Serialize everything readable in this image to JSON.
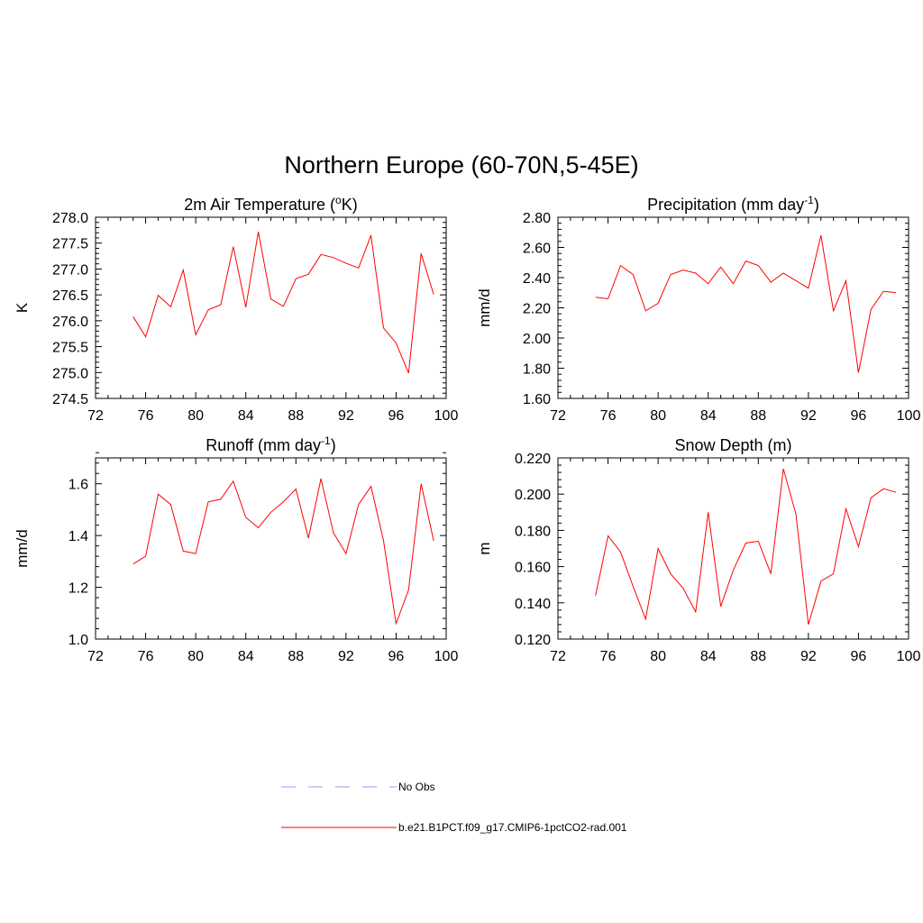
{
  "figure": {
    "title": "Northern Europe (60-70N,5-45E)"
  },
  "chart_data": [
    {
      "type": "line",
      "title_main": "2m Air Temperature (",
      "title_sup": "o",
      "title_end": "K)",
      "xlabel": "",
      "ylabel": "K",
      "xlim": [
        72,
        100
      ],
      "ylim": [
        274.5,
        278.0
      ],
      "xticks": [
        72,
        76,
        80,
        84,
        88,
        92,
        96,
        100
      ],
      "yticks": [
        274.5,
        275.0,
        275.5,
        276.0,
        276.5,
        277.0,
        277.5,
        278.0
      ],
      "ytick_labels": [
        "274.5",
        "275.0",
        "275.5",
        "276.0",
        "276.5",
        "277.0",
        "277.5",
        "278.0"
      ],
      "grid": false,
      "series": [
        {
          "name": "b.e21.B1PCT.f09_g17.CMIP6-1pctCO2-rad.001",
          "color": "#ff0000",
          "x": [
            75,
            76,
            77,
            78,
            79,
            80,
            81,
            82,
            83,
            84,
            85,
            86,
            87,
            88,
            89,
            90,
            91,
            92,
            93,
            94,
            95,
            96,
            97,
            98,
            99
          ],
          "y": [
            276.08,
            275.69,
            276.49,
            276.27,
            276.98,
            275.73,
            276.21,
            276.31,
            277.43,
            276.26,
            277.72,
            276.42,
            276.28,
            276.81,
            276.9,
            277.28,
            277.22,
            277.11,
            277.02,
            277.65,
            275.86,
            275.57,
            274.99,
            277.3,
            276.51
          ]
        }
      ]
    },
    {
      "type": "line",
      "title_main": "Precipitation (mm day",
      "title_sup": "-1",
      "title_end": ")",
      "xlabel": "",
      "ylabel": "mm/d",
      "xlim": [
        72,
        100
      ],
      "ylim": [
        1.6,
        2.8
      ],
      "xticks": [
        72,
        76,
        80,
        84,
        88,
        92,
        96,
        100
      ],
      "yticks": [
        1.6,
        1.8,
        2.0,
        2.2,
        2.4,
        2.6,
        2.8
      ],
      "ytick_labels": [
        "1.60",
        "1.80",
        "2.00",
        "2.20",
        "2.40",
        "2.60",
        "2.80"
      ],
      "grid": false,
      "series": [
        {
          "name": "b.e21.B1PCT.f09_g17.CMIP6-1pctCO2-rad.001",
          "color": "#ff0000",
          "x": [
            75,
            76,
            77,
            78,
            79,
            80,
            81,
            82,
            83,
            84,
            85,
            86,
            87,
            88,
            89,
            90,
            91,
            92,
            93,
            94,
            95,
            96,
            97,
            98,
            99
          ],
          "y": [
            2.27,
            2.26,
            2.48,
            2.42,
            2.18,
            2.23,
            2.42,
            2.45,
            2.43,
            2.36,
            2.47,
            2.36,
            2.51,
            2.48,
            2.37,
            2.43,
            2.38,
            2.33,
            2.68,
            2.18,
            2.38,
            1.77,
            2.19,
            2.31,
            2.3
          ]
        }
      ]
    },
    {
      "type": "line",
      "title_main": "Runoff (mm day",
      "title_sup": "-1",
      "title_end": ")",
      "xlabel": "",
      "ylabel": "mm/d",
      "xlim": [
        72,
        100
      ],
      "ylim": [
        1.0,
        1.7
      ],
      "xticks": [
        72,
        76,
        80,
        84,
        88,
        92,
        96,
        100
      ],
      "yticks": [
        1.0,
        1.2,
        1.4,
        1.6
      ],
      "ytick_labels": [
        "1.0",
        "1.2",
        "1.4",
        "1.6"
      ],
      "grid": false,
      "series": [
        {
          "name": "b.e21.B1PCT.f09_g17.CMIP6-1pctCO2-rad.001",
          "color": "#ff0000",
          "x": [
            75,
            76,
            77,
            78,
            79,
            80,
            81,
            82,
            83,
            84,
            85,
            86,
            87,
            88,
            89,
            90,
            91,
            92,
            93,
            94,
            95,
            96,
            97,
            98,
            99
          ],
          "y": [
            1.29,
            1.32,
            1.56,
            1.52,
            1.34,
            1.33,
            1.53,
            1.54,
            1.61,
            1.47,
            1.43,
            1.49,
            1.53,
            1.58,
            1.39,
            1.62,
            1.41,
            1.33,
            1.52,
            1.59,
            1.38,
            1.06,
            1.19,
            1.6,
            1.38
          ]
        }
      ]
    },
    {
      "type": "line",
      "title_main": "Snow Depth (m)",
      "title_sup": "",
      "title_end": "",
      "xlabel": "",
      "ylabel": "m",
      "xlim": [
        72,
        100
      ],
      "ylim": [
        0.12,
        0.22
      ],
      "xticks": [
        72,
        76,
        80,
        84,
        88,
        92,
        96,
        100
      ],
      "yticks": [
        0.12,
        0.14,
        0.16,
        0.18,
        0.2,
        0.22
      ],
      "ytick_labels": [
        "0.120",
        "0.140",
        "0.160",
        "0.180",
        "0.200",
        "0.220"
      ],
      "grid": false,
      "series": [
        {
          "name": "b.e21.B1PCT.f09_g17.CMIP6-1pctCO2-rad.001",
          "color": "#ff0000",
          "x": [
            75,
            76,
            77,
            78,
            79,
            80,
            81,
            82,
            83,
            84,
            85,
            86,
            87,
            88,
            89,
            90,
            91,
            92,
            93,
            94,
            95,
            96,
            97,
            98,
            99
          ],
          "y": [
            0.144,
            0.177,
            0.168,
            0.149,
            0.131,
            0.17,
            0.156,
            0.148,
            0.135,
            0.19,
            0.138,
            0.158,
            0.173,
            0.174,
            0.156,
            0.214,
            0.189,
            0.128,
            0.152,
            0.156,
            0.192,
            0.171,
            0.198,
            0.203,
            0.201
          ]
        }
      ]
    }
  ],
  "legend": {
    "items": [
      {
        "label": "No Obs",
        "color": "#9999ff",
        "dash": true
      },
      {
        "label": "b.e21.B1PCT.f09_g17.CMIP6-1pctCO2-rad.001",
        "color": "#ff0000",
        "dash": false
      }
    ]
  }
}
